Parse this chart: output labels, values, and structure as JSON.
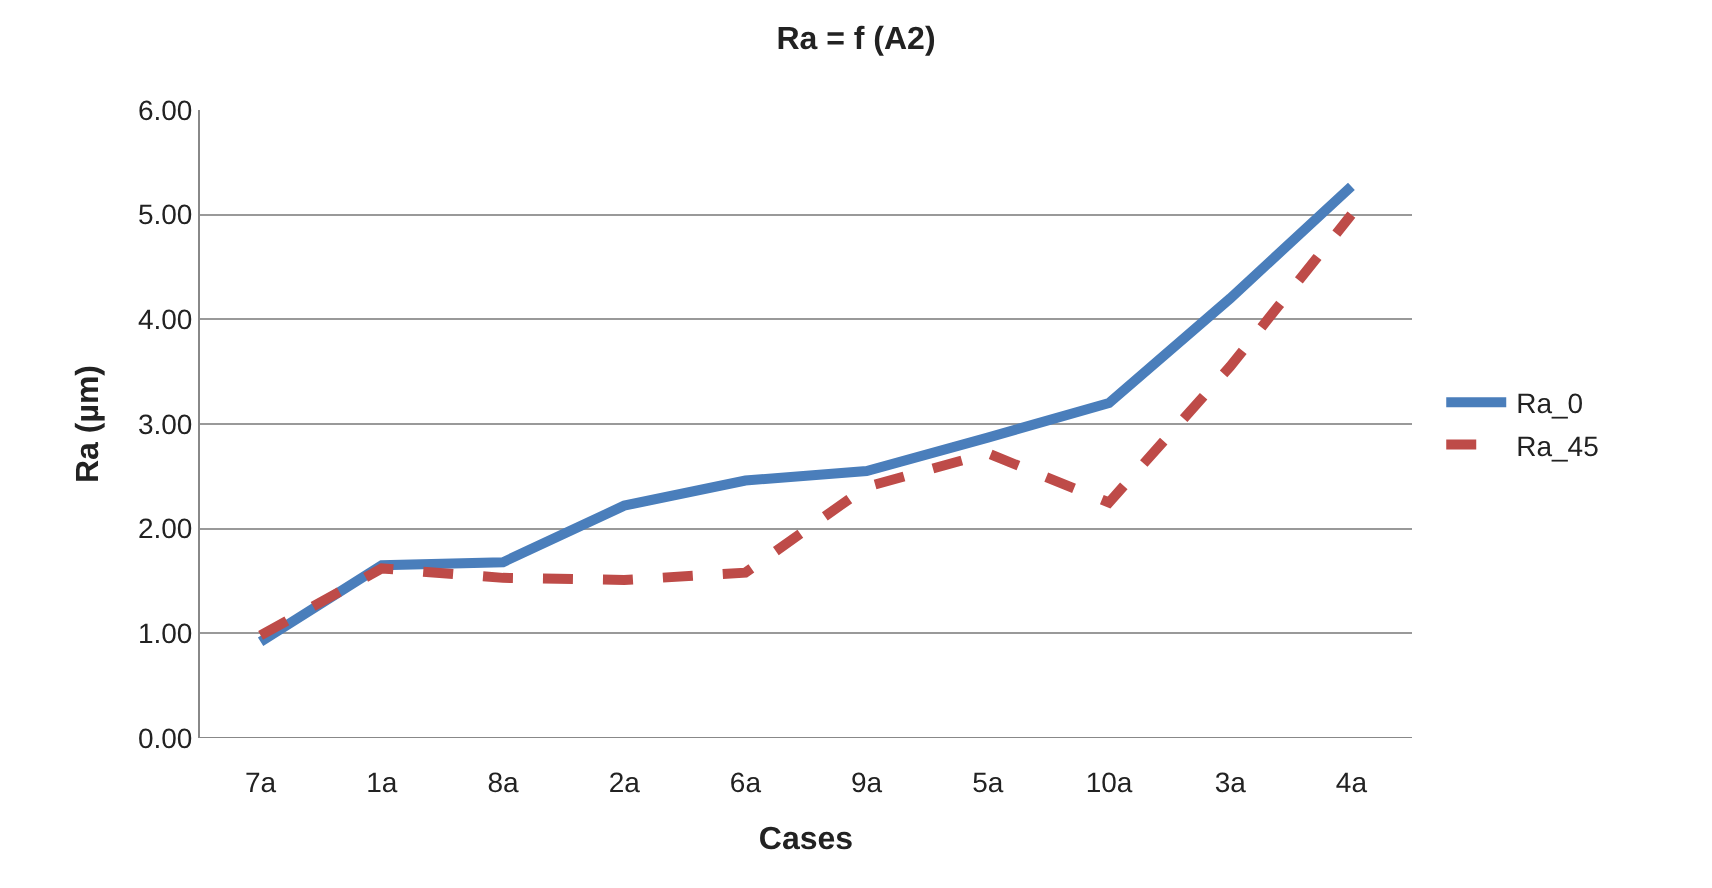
{
  "chart_data": {
    "type": "line",
    "title": "Ra = f (A2)",
    "xlabel": "Cases",
    "ylabel": "Ra (µm)",
    "categories": [
      "7a",
      "1a",
      "8a",
      "2a",
      "6a",
      "9a",
      "5a",
      "10a",
      "3a",
      "4a"
    ],
    "series": [
      {
        "name": "Ra_0",
        "color": "#4a7ebb",
        "line_style": "solid",
        "values": [
          0.92,
          1.65,
          1.68,
          2.22,
          2.46,
          2.55,
          2.87,
          3.2,
          4.2,
          5.27
        ]
      },
      {
        "name": "Ra_45",
        "color": "#be4b48",
        "line_style": "dashed",
        "values": [
          0.98,
          1.62,
          1.53,
          1.51,
          1.58,
          2.4,
          2.72,
          2.25,
          3.55,
          5.0
        ]
      }
    ],
    "ylim": [
      0,
      6
    ],
    "yticks": [
      {
        "value": 0,
        "label": "0.00"
      },
      {
        "value": 1,
        "label": "1.00"
      },
      {
        "value": 2,
        "label": "2.00"
      },
      {
        "value": 3,
        "label": "3.00"
      },
      {
        "value": 4,
        "label": "4.00"
      },
      {
        "value": 5,
        "label": "5.00"
      },
      {
        "value": 6,
        "label": "6.00"
      }
    ],
    "grid": "y",
    "legend": "right",
    "marker": "none"
  }
}
